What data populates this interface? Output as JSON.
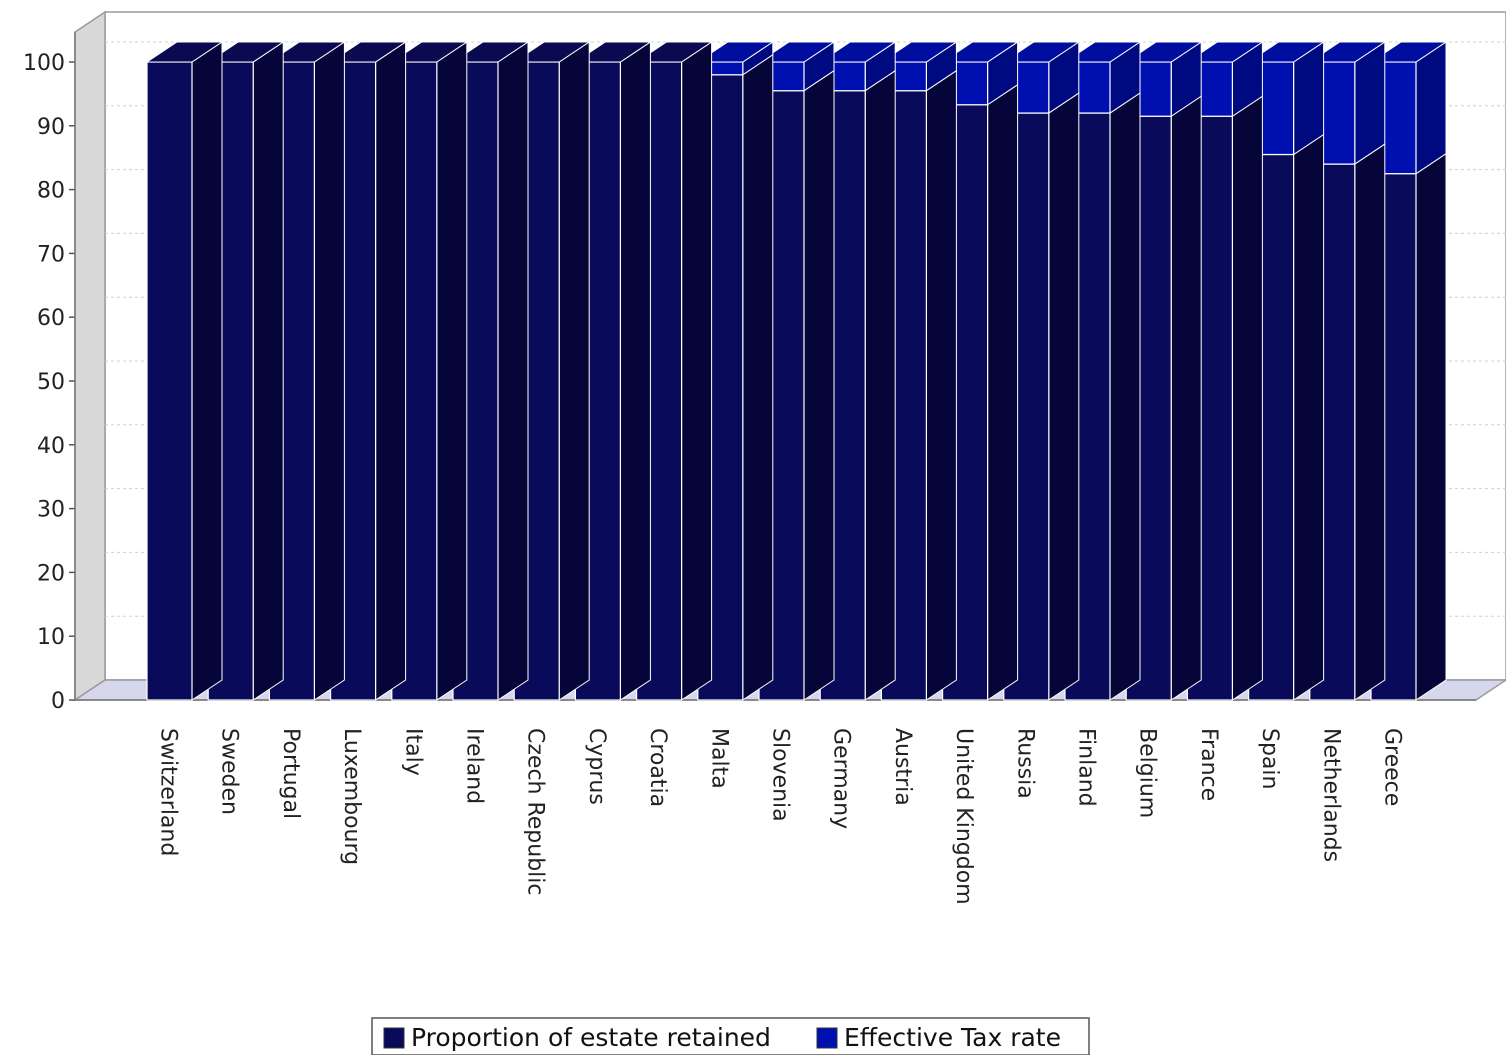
{
  "chart_data": {
    "type": "bar",
    "stacked": true,
    "three_d": true,
    "categories": [
      "Switzerland",
      "Sweden",
      "Portugal",
      "Luxembourg",
      "Italy",
      "Ireland",
      "Czech Republic",
      "Cyprus",
      "Croatia",
      "Malta",
      "Slovenia",
      "Germany",
      "Austria",
      "United Kingdom",
      "Russia",
      "Finland",
      "Belgium",
      "France",
      "Spain",
      "Netherlands",
      "Greece"
    ],
    "series": [
      {
        "name": "Proportion of estate retained",
        "color": "#0a0a5a",
        "values": [
          100,
          100,
          100,
          100,
          100,
          100,
          100,
          100,
          100,
          98,
          95.5,
          95.5,
          95.5,
          93.3,
          92,
          92,
          91.5,
          91.5,
          85.5,
          84,
          82.5
        ]
      },
      {
        "name": "Effective Tax rate",
        "color": "#0010b0",
        "values": [
          0,
          0,
          0,
          0,
          0,
          0,
          0,
          0,
          0,
          2,
          4.5,
          4.5,
          4.5,
          6.7,
          8,
          8,
          8.5,
          8.5,
          14.5,
          16,
          17.5
        ]
      }
    ],
    "yticks": [
      "0",
      "10",
      "20",
      "30",
      "40",
      "50",
      "60",
      "70",
      "80",
      "90",
      "100"
    ],
    "ylim": [
      0,
      100
    ],
    "grid": true,
    "legend_position": "bottom-center",
    "title": "",
    "xlabel": "",
    "ylabel": ""
  }
}
